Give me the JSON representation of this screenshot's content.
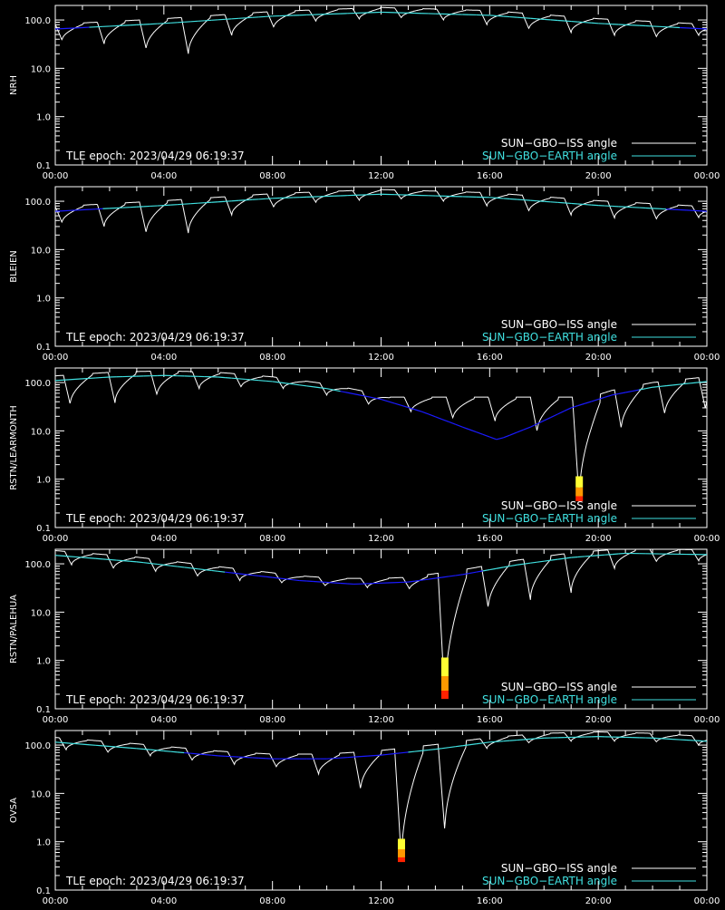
{
  "figure": {
    "background": "#000000",
    "axis_color": "#ffffff",
    "iss_color": "#ffffff",
    "earth_color_low": "#1a1aff",
    "earth_color_high": "#40e0e0",
    "sun_colors": [
      "#ffff33",
      "#ff9900",
      "#ff2200"
    ]
  },
  "chart_data": [
    {
      "type": "line",
      "ylabel": "NRH",
      "yscale": "log",
      "ylim": [
        0.1,
        200
      ],
      "xlim_hours": [
        0,
        24
      ],
      "xticks": [
        "00:00",
        "04:00",
        "08:00",
        "12:00",
        "16:00",
        "20:00",
        "00:00"
      ],
      "yticks": [
        "0.1",
        "1.0",
        "10.0",
        "100.0"
      ],
      "epoch_label": "TLE epoch: 2023/04/29 06:19:37",
      "legend": [
        {
          "name": "SUN−GBO−ISS angle",
          "color": "#ffffff"
        },
        {
          "name": "SUN−GBO−EARTH angle",
          "color": "#40e0e0"
        }
      ],
      "earth": {
        "x": [
          0,
          4,
          8,
          12,
          16,
          20,
          24
        ],
        "y": [
          65,
          85,
          120,
          145,
          125,
          85,
          65
        ]
      },
      "iss_dips": [
        {
          "x": 0.25,
          "min": 38
        },
        {
          "x": 1.8,
          "min": 32
        },
        {
          "x": 3.35,
          "min": 25
        },
        {
          "x": 4.9,
          "min": 20
        },
        {
          "x": 6.5,
          "min": 48
        },
        {
          "x": 8.05,
          "min": 70
        },
        {
          "x": 9.6,
          "min": 95
        },
        {
          "x": 11.2,
          "min": 105
        },
        {
          "x": 12.75,
          "min": 110
        },
        {
          "x": 14.3,
          "min": 100
        },
        {
          "x": 15.9,
          "min": 80
        },
        {
          "x": 17.45,
          "min": 65
        },
        {
          "x": 19.0,
          "min": 55
        },
        {
          "x": 20.6,
          "min": 48
        },
        {
          "x": 22.15,
          "min": 44
        },
        {
          "x": 23.7,
          "min": 48
        }
      ],
      "sun": []
    },
    {
      "type": "line",
      "ylabel": "BLEIEN",
      "yscale": "log",
      "ylim": [
        0.1,
        200
      ],
      "xlim_hours": [
        0,
        24
      ],
      "xticks": [
        "00:00",
        "04:00",
        "08:00",
        "12:00",
        "16:00",
        "20:00",
        "00:00"
      ],
      "yticks": [
        "0.1",
        "1.0",
        "10.0",
        "100.0"
      ],
      "epoch_label": "TLE epoch: 2023/04/29 06:19:37",
      "legend": [
        {
          "name": "SUN−GBO−ISS angle",
          "color": "#ffffff"
        },
        {
          "name": "SUN−GBO−EARTH angle",
          "color": "#40e0e0"
        }
      ],
      "earth": {
        "x": [
          0,
          4,
          8,
          12,
          16,
          20,
          24
        ],
        "y": [
          62,
          82,
          115,
          140,
          120,
          82,
          62
        ]
      },
      "iss_dips": [
        {
          "x": 0.25,
          "min": 36
        },
        {
          "x": 1.8,
          "min": 30
        },
        {
          "x": 3.35,
          "min": 22
        },
        {
          "x": 4.9,
          "min": 22
        },
        {
          "x": 6.5,
          "min": 52
        },
        {
          "x": 8.05,
          "min": 75
        },
        {
          "x": 9.6,
          "min": 95
        },
        {
          "x": 11.2,
          "min": 105
        },
        {
          "x": 12.75,
          "min": 110
        },
        {
          "x": 14.3,
          "min": 100
        },
        {
          "x": 15.9,
          "min": 80
        },
        {
          "x": 17.45,
          "min": 62
        },
        {
          "x": 19.0,
          "min": 52
        },
        {
          "x": 20.6,
          "min": 45
        },
        {
          "x": 22.15,
          "min": 42
        },
        {
          "x": 23.7,
          "min": 46
        }
      ],
      "sun": []
    },
    {
      "type": "line",
      "ylabel": "RSTN/LEARMONTH",
      "yscale": "log",
      "ylim": [
        0.1,
        200
      ],
      "xlim_hours": [
        0,
        24
      ],
      "xticks": [
        "00:00",
        "04:00",
        "08:00",
        "12:00",
        "16:00",
        "20:00",
        "00:00"
      ],
      "yticks": [
        "0.1",
        "1.0",
        "10.0",
        "100.0"
      ],
      "epoch_label": "TLE epoch: 2023/04/29 06:19:37",
      "legend": [
        {
          "name": "SUN−GBO−ISS angle",
          "color": "#ffffff"
        },
        {
          "name": "SUN−GBO−EARTH angle",
          "color": "#40e0e0"
        }
      ],
      "earth": {
        "x": [
          0,
          2,
          4,
          6,
          8,
          10,
          12,
          13.5,
          15,
          16.3,
          17.5,
          19,
          20.5,
          22,
          24
        ],
        "y": [
          110,
          130,
          140,
          130,
          105,
          75,
          45,
          25,
          12,
          6.5,
          12,
          30,
          55,
          80,
          105
        ]
      },
      "iss_dips": [
        {
          "x": 0.55,
          "min": 35
        },
        {
          "x": 2.2,
          "min": 38
        },
        {
          "x": 3.75,
          "min": 55
        },
        {
          "x": 5.3,
          "min": 75
        },
        {
          "x": 6.85,
          "min": 80
        },
        {
          "x": 8.4,
          "min": 75
        },
        {
          "x": 10.0,
          "min": 55
        },
        {
          "x": 11.55,
          "min": 35
        },
        {
          "x": 13.1,
          "min": 25
        },
        {
          "x": 14.65,
          "min": 18
        },
        {
          "x": 16.2,
          "min": 16
        },
        {
          "x": 17.75,
          "min": 9.5
        },
        {
          "x": 19.3,
          "min": 0.35
        },
        {
          "x": 20.85,
          "min": 11
        },
        {
          "x": 22.45,
          "min": 22
        },
        {
          "x": 23.95,
          "min": 28
        }
      ],
      "sun": [
        {
          "x": 19.3,
          "top": 1.15,
          "bottom": 0.35
        }
      ]
    },
    {
      "type": "line",
      "ylabel": "RSTN/PALEHUA",
      "yscale": "log",
      "ylim": [
        0.1,
        200
      ],
      "xlim_hours": [
        0,
        24
      ],
      "xticks": [
        "00:00",
        "04:00",
        "08:00",
        "12:00",
        "16:00",
        "20:00",
        "00:00"
      ],
      "yticks": [
        "0.1",
        "1.0",
        "10.0",
        "100.0"
      ],
      "epoch_label": "TLE epoch: 2023/04/29 06:19:37",
      "legend": [
        {
          "name": "SUN−GBO−ISS angle",
          "color": "#ffffff"
        },
        {
          "name": "SUN−GBO−EARTH angle",
          "color": "#40e0e0"
        }
      ],
      "earth": {
        "x": [
          0,
          3,
          6,
          9,
          11,
          13,
          15,
          17,
          19,
          21,
          24
        ],
        "y": [
          150,
          110,
          70,
          45,
          38,
          42,
          60,
          95,
          135,
          165,
          155
        ]
      },
      "iss_dips": [
        {
          "x": 0.6,
          "min": 95
        },
        {
          "x": 2.15,
          "min": 80
        },
        {
          "x": 3.7,
          "min": 70
        },
        {
          "x": 5.25,
          "min": 55
        },
        {
          "x": 6.8,
          "min": 45
        },
        {
          "x": 8.35,
          "min": 40
        },
        {
          "x": 9.95,
          "min": 35
        },
        {
          "x": 11.5,
          "min": 32
        },
        {
          "x": 13.05,
          "min": 30
        },
        {
          "x": 14.35,
          "min": 0.15
        },
        {
          "x": 15.95,
          "min": 12
        },
        {
          "x": 17.5,
          "min": 18
        },
        {
          "x": 19.0,
          "min": 25
        },
        {
          "x": 20.6,
          "min": 80
        },
        {
          "x": 22.15,
          "min": 110
        },
        {
          "x": 23.7,
          "min": 115
        }
      ],
      "sun": [
        {
          "x": 14.35,
          "top": 1.15,
          "bottom": 0.16
        }
      ]
    },
    {
      "type": "line",
      "ylabel": "OVSA",
      "yscale": "log",
      "ylim": [
        0.1,
        200
      ],
      "xlim_hours": [
        0,
        24
      ],
      "xticks": [
        "00:00",
        "04:00",
        "08:00",
        "12:00",
        "16:00",
        "20:00",
        "00:00"
      ],
      "yticks": [
        "0.1",
        "1.0",
        "10.0",
        "100.0"
      ],
      "epoch_label": "TLE epoch: 2023/04/29 06:19:37",
      "legend": [
        {
          "name": "SUN−GBO−ISS angle",
          "color": "#ffffff"
        },
        {
          "name": "SUN−GBO−EARTH angle",
          "color": "#40e0e0"
        }
      ],
      "earth": {
        "x": [
          0,
          3,
          6,
          8,
          10,
          12,
          14,
          16,
          18,
          20,
          22,
          24
        ],
        "y": [
          115,
          85,
          60,
          52,
          52,
          62,
          82,
          115,
          140,
          150,
          140,
          120
        ]
      },
      "iss_dips": [
        {
          "x": 0.4,
          "min": 80
        },
        {
          "x": 1.95,
          "min": 70
        },
        {
          "x": 3.5,
          "min": 60
        },
        {
          "x": 5.05,
          "min": 48
        },
        {
          "x": 6.6,
          "min": 40
        },
        {
          "x": 8.15,
          "min": 35
        },
        {
          "x": 9.7,
          "min": 25
        },
        {
          "x": 11.25,
          "min": 12
        },
        {
          "x": 12.75,
          "min": 0.38
        },
        {
          "x": 14.35,
          "min": 1.6
        },
        {
          "x": 15.9,
          "min": 85
        },
        {
          "x": 17.45,
          "min": 110
        },
        {
          "x": 19.0,
          "min": 120
        },
        {
          "x": 20.6,
          "min": 120
        },
        {
          "x": 22.15,
          "min": 115
        },
        {
          "x": 23.7,
          "min": 100
        }
      ],
      "sun": [
        {
          "x": 12.75,
          "top": 1.15,
          "bottom": 0.38
        }
      ]
    }
  ]
}
